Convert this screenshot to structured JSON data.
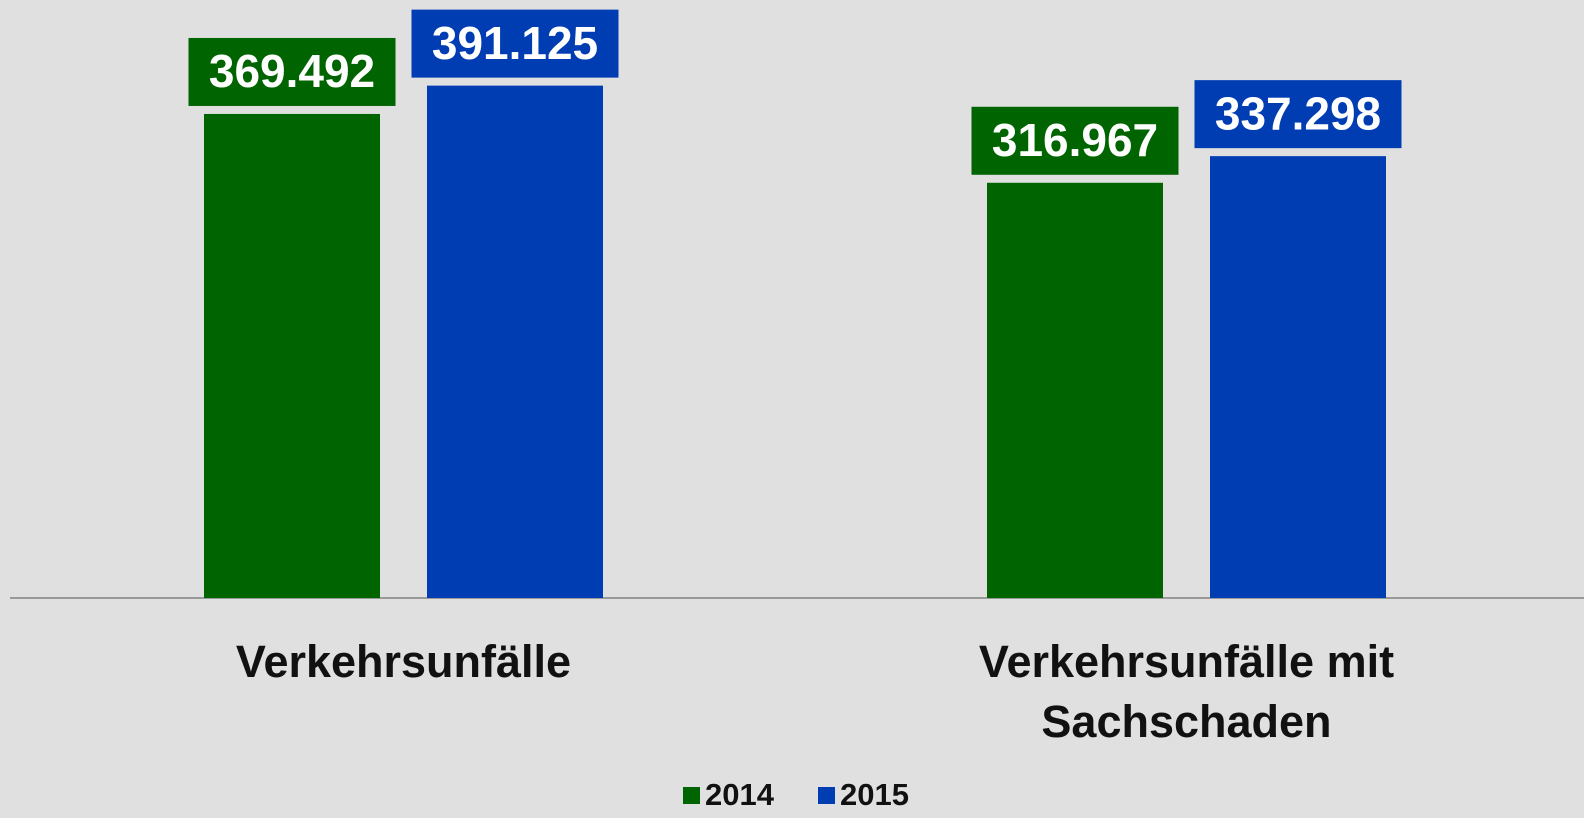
{
  "chart_data": {
    "type": "bar",
    "categories": [
      "Verkehrsunfälle",
      "Verkehrsunfälle mit Sachschaden"
    ],
    "series": [
      {
        "name": "2014",
        "color": "#006400",
        "values": [
          369492,
          316967
        ],
        "value_labels": [
          "369.492",
          "316.967"
        ]
      },
      {
        "name": "2015",
        "color": "#003db3",
        "values": [
          391125,
          337298
        ],
        "value_labels": [
          "391.125",
          "337.298"
        ]
      }
    ],
    "legend": "bottom"
  }
}
